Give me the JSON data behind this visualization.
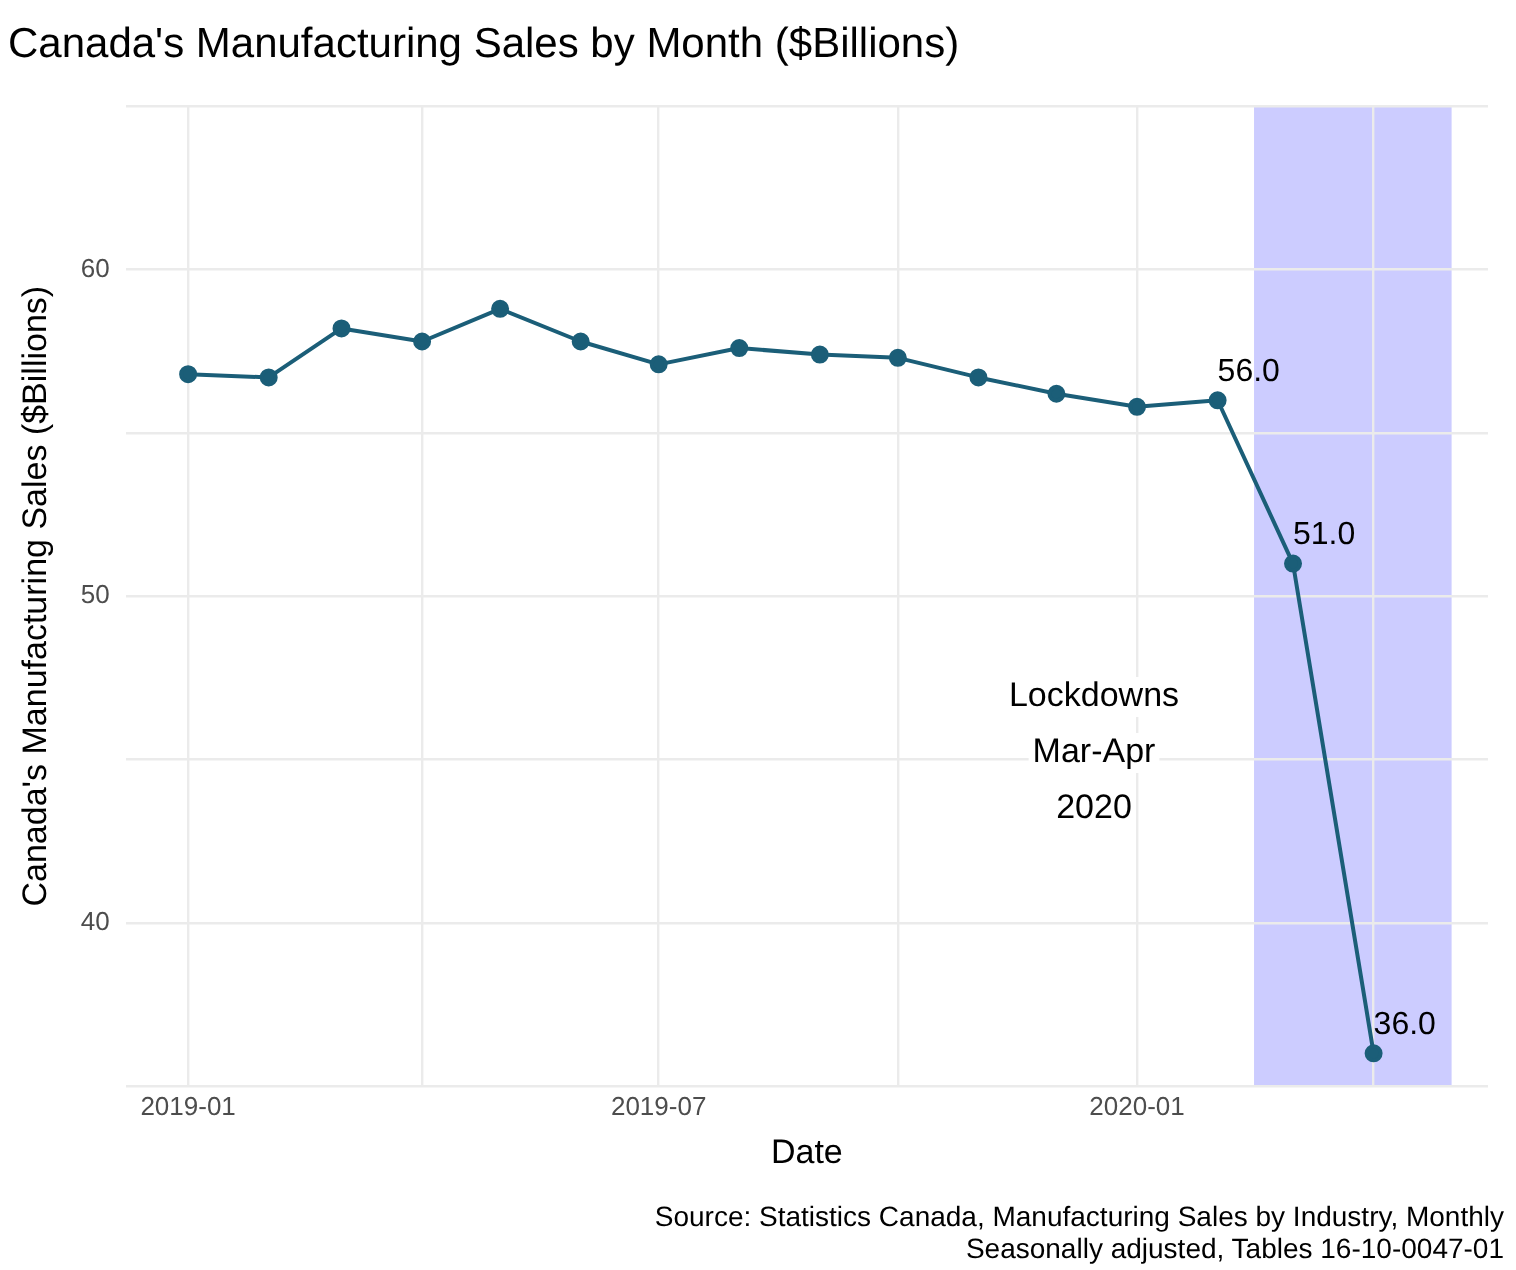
{
  "chart_data": {
    "type": "line",
    "title": "Canada's Manufacturing Sales by Month ($Billions)",
    "xlabel": "Date",
    "ylabel": "Canada's Manufacturing Sales ($Billions)",
    "x": [
      "2019-01",
      "2019-02",
      "2019-03",
      "2019-04",
      "2019-05",
      "2019-06",
      "2019-07",
      "2019-08",
      "2019-09",
      "2019-10",
      "2019-11",
      "2019-12",
      "2020-01",
      "2020-02",
      "2020-03",
      "2020-04"
    ],
    "series": [
      {
        "color": "#1b5e78",
        "values": [
          56.8,
          56.7,
          58.2,
          57.8,
          58.8,
          57.8,
          57.1,
          57.6,
          57.4,
          57.3,
          56.7,
          56.2,
          55.8,
          56.0,
          51.0,
          36.0
        ],
        "value_labels": [
          null,
          null,
          null,
          null,
          null,
          null,
          null,
          null,
          null,
          null,
          null,
          null,
          null,
          "56.0",
          "51.0",
          "36.0"
        ]
      }
    ],
    "xlim": [
      "2018-12-08",
      "2020-05-15"
    ],
    "xticks": [
      "2019-01",
      {
        "value": "2019-04",
        "label": null
      },
      "2019-07",
      {
        "value": "2019-10",
        "label": null
      },
      "2020-01",
      {
        "value": "2020-04",
        "label": null
      }
    ],
    "ylim": [
      35,
      65
    ],
    "yticks": [
      {
        "value": 35,
        "label": null
      },
      40,
      {
        "value": 45,
        "label": null
      },
      50,
      {
        "value": 55,
        "label": null
      },
      60,
      {
        "value": 65,
        "label": null
      }
    ],
    "bands": [
      {
        "axis": "x",
        "from": "2020-02-15",
        "to": "2020-05-01",
        "label": "Lockdowns\nMar-Apr\n2020",
        "color": "#ccccff"
      }
    ],
    "annotations": [
      "Source: Statistics Canada, Manufacturing Sales by Industry, Monthly",
      "Seasonally adjusted, Tables 16-10-0047-01"
    ],
    "grid": true,
    "legend": false,
    "marker": "circle",
    "line_style": "solid"
  }
}
